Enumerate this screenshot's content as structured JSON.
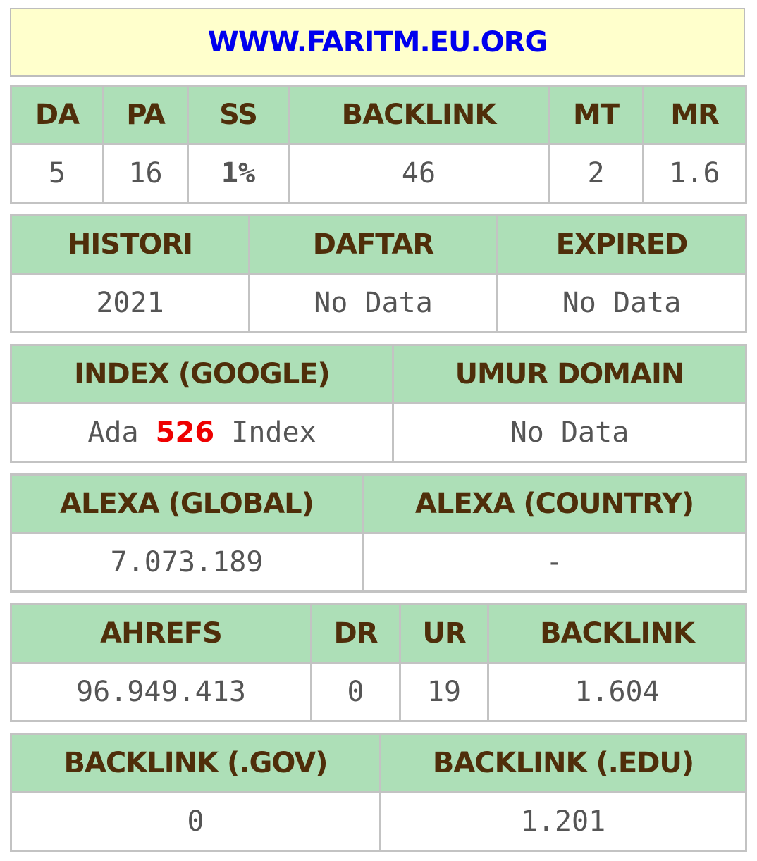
{
  "site": {
    "title": "WWW.FARITM.EU.ORG"
  },
  "moz": {
    "headers": [
      "DA",
      "PA",
      "SS",
      "BACKLINK",
      "MT",
      "MR"
    ],
    "values": [
      "5",
      "16",
      "1%",
      "46",
      "2",
      "1.6"
    ]
  },
  "domain_info": {
    "headers": [
      "HISTORI",
      "DAFTAR",
      "EXPIRED"
    ],
    "values": [
      "2021",
      "No Data",
      "No Data"
    ]
  },
  "index_info": {
    "headers": [
      "INDEX (GOOGLE)",
      "UMUR DOMAIN"
    ],
    "index_prefix": "Ada",
    "index_count": "526",
    "index_suffix": "Index",
    "umur_domain": "No Data"
  },
  "alexa": {
    "headers": [
      "ALEXA (GLOBAL)",
      "ALEXA (COUNTRY)"
    ],
    "values": [
      "7.073.189",
      "-"
    ]
  },
  "ahrefs": {
    "headers": [
      "AHREFS",
      "DR",
      "UR",
      "BACKLINK"
    ],
    "values": [
      "96.949.413",
      "0",
      "19",
      "1.604"
    ]
  },
  "backlinks_special": {
    "headers": [
      "BACKLINK (.GOV)",
      "BACKLINK (.EDU)"
    ],
    "values": [
      "0",
      "1.201"
    ]
  },
  "colors": {
    "header_bg": "#addfb7",
    "header_text": "#4f2e0a",
    "title_bg": "#ffffcc",
    "title_text": "#0000ee",
    "ss_green": "#138a13",
    "index_red": "#ee0000"
  }
}
